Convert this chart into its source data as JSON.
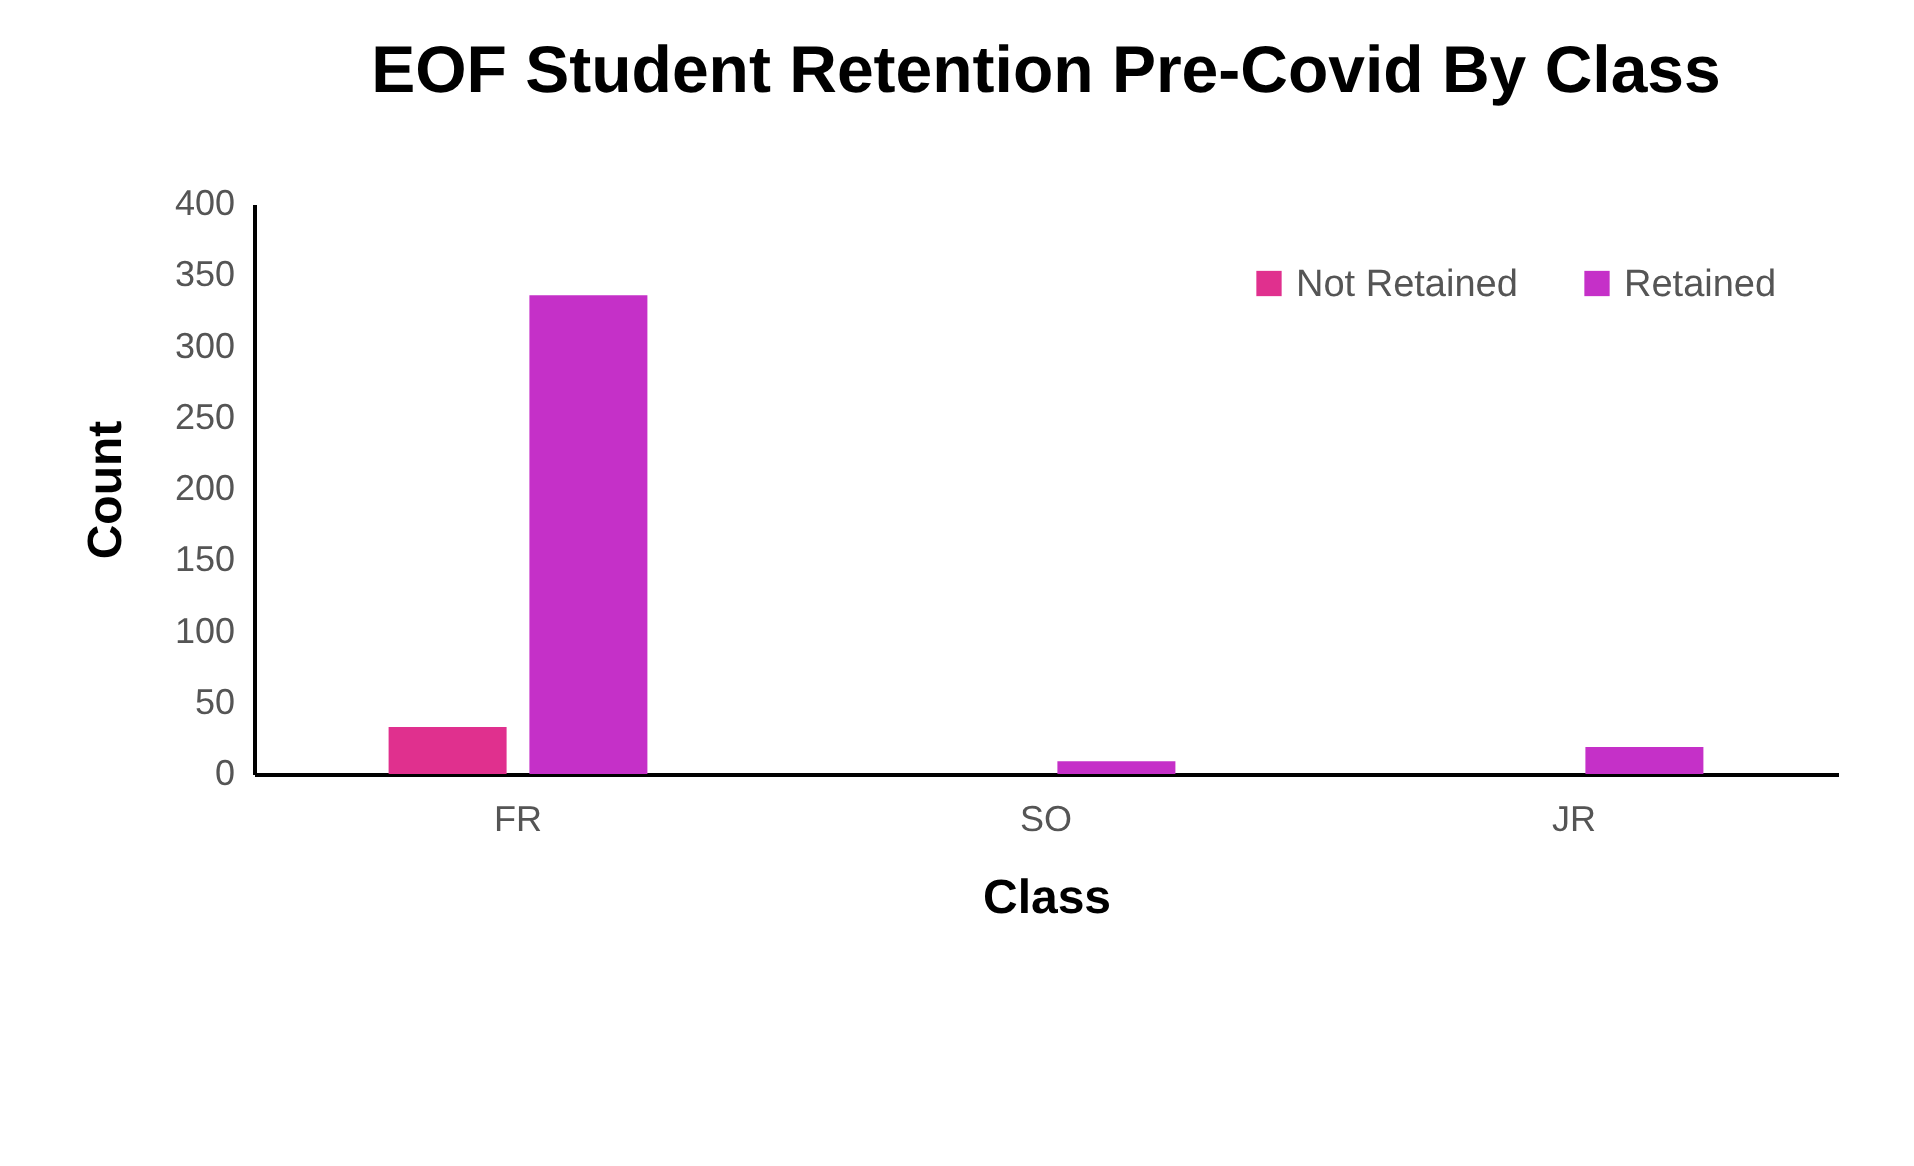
{
  "chart_data": {
    "type": "bar",
    "title": "EOF Student Retention Pre-Covid By Class",
    "xlabel": "Class",
    "ylabel": "Count",
    "categories": [
      "FR",
      "SO",
      "JR"
    ],
    "series": [
      {
        "name": "Not Retained",
        "color": "#e0308e",
        "values": [
          33,
          0,
          0
        ]
      },
      {
        "name": "Retained",
        "color": "#c530c8",
        "values": [
          336,
          9,
          19
        ]
      }
    ],
    "ylim": [
      0,
      400
    ],
    "yticks": [
      0,
      50,
      100,
      150,
      200,
      250,
      300,
      350,
      400
    ],
    "grid": false,
    "legend": "top right"
  }
}
